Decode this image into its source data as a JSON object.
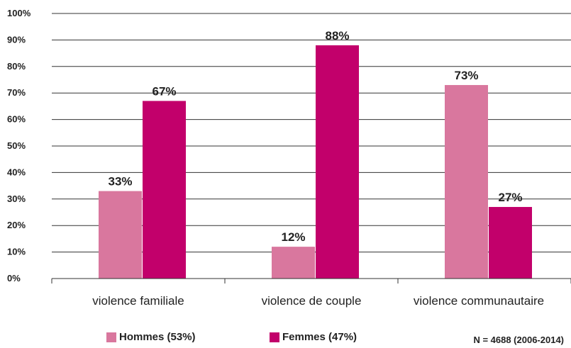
{
  "chart_data": {
    "type": "bar",
    "categories": [
      "violence familiale",
      "violence de couple",
      "violence communautaire"
    ],
    "series": [
      {
        "name": "Hommes (53%)",
        "values": [
          33,
          12,
          73
        ],
        "labels": [
          "33%",
          "12%",
          "73%"
        ],
        "color": "#d9779e"
      },
      {
        "name": "Femmes (47%)",
        "values": [
          67,
          88,
          27
        ],
        "labels": [
          "67%",
          "88%",
          "27%"
        ],
        "color": "#c2006b"
      }
    ],
    "ylim": [
      0,
      100
    ],
    "yticks": [
      "0%",
      "10%",
      "20%",
      "30%",
      "40%",
      "50%",
      "60%",
      "70%",
      "80%",
      "90%",
      "100%"
    ],
    "grid": true,
    "legend_position": "bottom",
    "note": "N = 4688 (2006-2014)"
  }
}
